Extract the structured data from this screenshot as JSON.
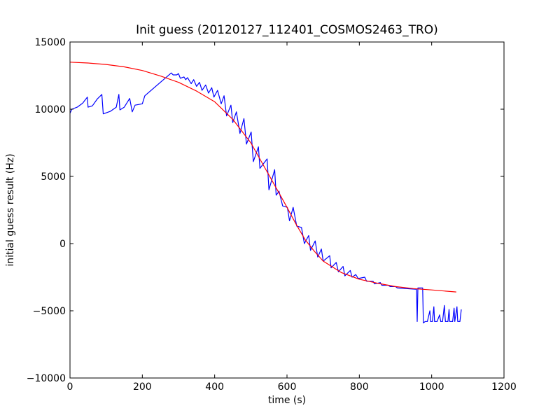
{
  "chart_data": {
    "type": "line",
    "title": "Init guess (20120127_112401_COSMOS2463_TRO)",
    "xlabel": "time (s)",
    "ylabel": "initial guess result (Hz)",
    "xlim": [
      0,
      1200
    ],
    "ylim": [
      -10000,
      15000
    ],
    "xticks": [
      0,
      200,
      400,
      600,
      800,
      1000,
      1200
    ],
    "yticks": [
      -10000,
      -5000,
      0,
      5000,
      10000,
      15000
    ],
    "grid": false,
    "legend": "none",
    "series": [
      {
        "color": "#0000ff",
        "points": [
          [
            0,
            9700
          ],
          [
            5,
            10000
          ],
          [
            20,
            10150
          ],
          [
            35,
            10450
          ],
          [
            48,
            10900
          ],
          [
            50,
            10150
          ],
          [
            62,
            10250
          ],
          [
            75,
            10750
          ],
          [
            88,
            11100
          ],
          [
            92,
            9650
          ],
          [
            112,
            9850
          ],
          [
            128,
            10150
          ],
          [
            135,
            11100
          ],
          [
            138,
            9950
          ],
          [
            150,
            10150
          ],
          [
            165,
            10800
          ],
          [
            172,
            9800
          ],
          [
            180,
            10300
          ],
          [
            200,
            10400
          ],
          [
            207,
            11000
          ],
          [
            280,
            12700
          ],
          [
            285,
            12550
          ],
          [
            295,
            12550
          ],
          [
            300,
            12650
          ],
          [
            305,
            12300
          ],
          [
            315,
            12400
          ],
          [
            320,
            12200
          ],
          [
            325,
            12350
          ],
          [
            335,
            11900
          ],
          [
            342,
            12200
          ],
          [
            350,
            11700
          ],
          [
            358,
            12000
          ],
          [
            365,
            11400
          ],
          [
            375,
            11800
          ],
          [
            383,
            11200
          ],
          [
            392,
            11600
          ],
          [
            398,
            10900
          ],
          [
            408,
            11400
          ],
          [
            418,
            10400
          ],
          [
            426,
            11000
          ],
          [
            433,
            9500
          ],
          [
            445,
            10300
          ],
          [
            450,
            9000
          ],
          [
            460,
            9800
          ],
          [
            470,
            8200
          ],
          [
            481,
            9300
          ],
          [
            488,
            7400
          ],
          [
            501,
            8300
          ],
          [
            507,
            6100
          ],
          [
            521,
            7200
          ],
          [
            525,
            5600
          ],
          [
            545,
            6300
          ],
          [
            550,
            4000
          ],
          [
            566,
            5500
          ],
          [
            570,
            3600
          ],
          [
            578,
            3900
          ],
          [
            588,
            2800
          ],
          [
            601,
            2700
          ],
          [
            607,
            1700
          ],
          [
            617,
            2700
          ],
          [
            627,
            1300
          ],
          [
            640,
            1200
          ],
          [
            648,
            0
          ],
          [
            660,
            600
          ],
          [
            665,
            -500
          ],
          [
            678,
            200
          ],
          [
            685,
            -1000
          ],
          [
            695,
            -400
          ],
          [
            700,
            -1300
          ],
          [
            718,
            -900
          ],
          [
            722,
            -1800
          ],
          [
            736,
            -1400
          ],
          [
            742,
            -2100
          ],
          [
            755,
            -1700
          ],
          [
            760,
            -2400
          ],
          [
            775,
            -2000
          ],
          [
            780,
            -2500
          ],
          [
            790,
            -2300
          ],
          [
            797,
            -2600
          ],
          [
            815,
            -2500
          ],
          [
            820,
            -2800
          ],
          [
            838,
            -2800
          ],
          [
            842,
            -3000
          ],
          [
            858,
            -2900
          ],
          [
            862,
            -3100
          ],
          [
            880,
            -3100
          ],
          [
            885,
            -3200
          ],
          [
            900,
            -3200
          ],
          [
            905,
            -3300
          ],
          [
            958,
            -3400
          ],
          [
            960,
            -5800
          ],
          [
            962,
            -3300
          ],
          [
            975,
            -3300
          ],
          [
            977,
            -5900
          ],
          [
            982,
            -5800
          ],
          [
            988,
            -5800
          ],
          [
            995,
            -5000
          ],
          [
            997,
            -5800
          ],
          [
            1002,
            -5800
          ],
          [
            1006,
            -4700
          ],
          [
            1008,
            -5800
          ],
          [
            1015,
            -5800
          ],
          [
            1022,
            -5300
          ],
          [
            1025,
            -5800
          ],
          [
            1030,
            -5800
          ],
          [
            1035,
            -4600
          ],
          [
            1038,
            -5800
          ],
          [
            1045,
            -5800
          ],
          [
            1048,
            -4900
          ],
          [
            1050,
            -5800
          ],
          [
            1058,
            -5800
          ],
          [
            1062,
            -4800
          ],
          [
            1064,
            -5800
          ],
          [
            1070,
            -4700
          ],
          [
            1072,
            -5800
          ],
          [
            1078,
            -5800
          ],
          [
            1082,
            -4900
          ]
        ]
      },
      {
        "color": "#ff0000",
        "points": [
          [
            0,
            13500
          ],
          [
            50,
            13440
          ],
          [
            100,
            13330
          ],
          [
            150,
            13150
          ],
          [
            200,
            12880
          ],
          [
            250,
            12470
          ],
          [
            300,
            12000
          ],
          [
            350,
            11350
          ],
          [
            400,
            10550
          ],
          [
            450,
            9250
          ],
          [
            500,
            7500
          ],
          [
            550,
            5100
          ],
          [
            575,
            3900
          ],
          [
            600,
            2700
          ],
          [
            625,
            1450
          ],
          [
            650,
            300
          ],
          [
            675,
            -550
          ],
          [
            700,
            -1300
          ],
          [
            750,
            -2150
          ],
          [
            800,
            -2650
          ],
          [
            850,
            -2950
          ],
          [
            900,
            -3200
          ],
          [
            950,
            -3350
          ],
          [
            1000,
            -3450
          ],
          [
            1068,
            -3600
          ]
        ]
      }
    ]
  }
}
